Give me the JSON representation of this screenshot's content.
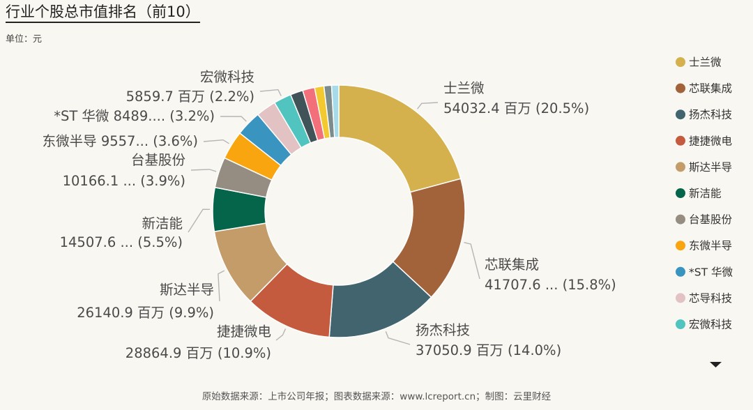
{
  "title": "行业个股总市值排名（前10）",
  "unit": "单位：元",
  "source": "原始数据来源：上市公司年报；图表数据来源：www.lcreport.cn；制图：云里财经",
  "legend_more_icon": "triangle-down-icon",
  "chart_data": {
    "type": "pie",
    "donut": true,
    "legend_placement": "right",
    "slices": [
      {
        "name": "士兰微",
        "value": 54032.4,
        "label_value": "54032.4 百万",
        "percent": "20.5%",
        "color": "#d5b14d"
      },
      {
        "name": "芯联集成",
        "value": 41707.6,
        "label_value": "41707.6 ...",
        "percent": "15.8%",
        "color": "#a2623a"
      },
      {
        "name": "扬杰科技",
        "value": 37050.9,
        "label_value": "37050.9 百万",
        "percent": "14.0%",
        "color": "#41646f"
      },
      {
        "name": "捷捷微电",
        "value": 28864.9,
        "label_value": "28864.9 百万",
        "percent": "10.9%",
        "color": "#c45a3e"
      },
      {
        "name": "斯达半导",
        "value": 26140.9,
        "label_value": "26140.9 百万",
        "percent": "9.9%",
        "color": "#c39c6a"
      },
      {
        "name": "新洁能",
        "value": 14507.6,
        "label_value": "14507.6 ...",
        "percent": "5.5%",
        "color": "#05654b"
      },
      {
        "name": "台基股份",
        "value": 10166.1,
        "label_value": "10166.1 ...",
        "percent": "3.9%",
        "color": "#958d81"
      },
      {
        "name": "东微半导",
        "value": 9557,
        "label_value": "9557...",
        "percent": "3.6%",
        "color": "#f8a50f"
      },
      {
        "name": "*ST 华微",
        "value": 8489,
        "label_value": "8489....",
        "percent": "3.2%",
        "color": "#3a94c0"
      },
      {
        "name": "芯导科技",
        "value": 6700,
        "label_value": "",
        "percent": "",
        "color": "#e2c2c3"
      },
      {
        "name": "宏微科技",
        "value": 5859.7,
        "label_value": "5859.7 百万",
        "percent": "2.2%",
        "color": "#51c4bf"
      },
      {
        "name": "",
        "value": 4200,
        "label_value": "",
        "percent": "",
        "color": "#3f5359"
      },
      {
        "name": "",
        "value": 4000,
        "label_value": "",
        "percent": "",
        "color": "#f2707a"
      },
      {
        "name": "",
        "value": 3100,
        "label_value": "",
        "percent": "",
        "color": "#f3c930"
      },
      {
        "name": "",
        "value": 2500,
        "label_value": "",
        "percent": "",
        "color": "#7c8c8a"
      },
      {
        "name": "",
        "value": 2400,
        "label_value": "",
        "percent": "",
        "color": "#a6dbea"
      }
    ]
  }
}
